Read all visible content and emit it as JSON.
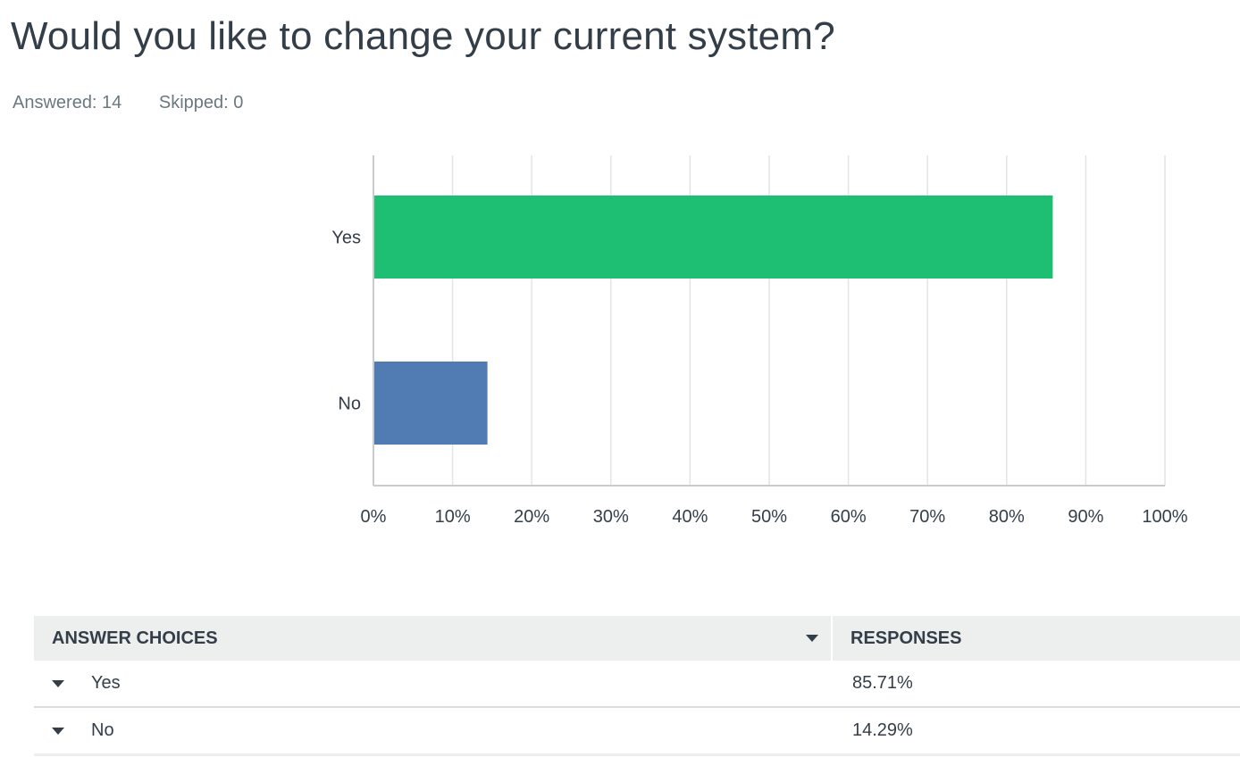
{
  "question": {
    "title": "Would you like to change your current system?",
    "answered": "Answered: 14",
    "skipped": "Skipped: 0"
  },
  "colors": {
    "yes": "#1fbf73",
    "no": "#517bb3",
    "grid": "#e2e4e5",
    "axis": "#c8cccf"
  },
  "chart_data": {
    "type": "bar",
    "orientation": "horizontal",
    "categories": [
      "Yes",
      "No"
    ],
    "values": [
      85.71,
      14.29
    ],
    "xlim": [
      0,
      100
    ],
    "xticks": [
      "0%",
      "10%",
      "20%",
      "30%",
      "40%",
      "50%",
      "60%",
      "70%",
      "80%",
      "90%",
      "100%"
    ],
    "grid": true
  },
  "table": {
    "headers": {
      "choices": "ANSWER CHOICES",
      "responses": "RESPONSES"
    },
    "rows": [
      {
        "choice": "Yes",
        "response": "85.71%"
      },
      {
        "choice": "No",
        "response": "14.29%"
      }
    ]
  }
}
